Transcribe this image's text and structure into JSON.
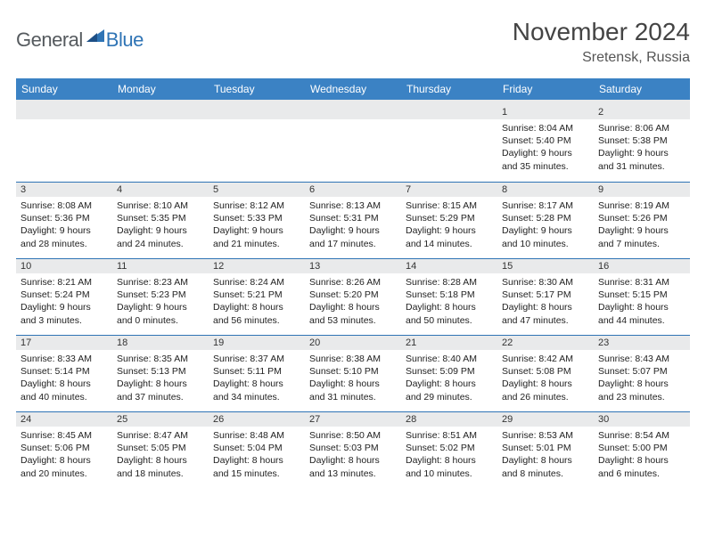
{
  "logo": {
    "prefix": "General",
    "suffix": "Blue"
  },
  "title": "November 2024",
  "location": "Sretensk, Russia",
  "colors": {
    "header_bg": "#3b82c4",
    "header_text": "#ffffff",
    "daynum_bg": "#e9eaeb",
    "row_divider": "#2f74b5",
    "body_text": "#222222",
    "page_bg": "#ffffff",
    "logo_gray": "#555a5e",
    "logo_blue": "#2f74b5"
  },
  "day_headers": [
    "Sunday",
    "Monday",
    "Tuesday",
    "Wednesday",
    "Thursday",
    "Friday",
    "Saturday"
  ],
  "weeks": [
    [
      {
        "n": "",
        "sr": "",
        "ss": "",
        "dl": ""
      },
      {
        "n": "",
        "sr": "",
        "ss": "",
        "dl": ""
      },
      {
        "n": "",
        "sr": "",
        "ss": "",
        "dl": ""
      },
      {
        "n": "",
        "sr": "",
        "ss": "",
        "dl": ""
      },
      {
        "n": "",
        "sr": "",
        "ss": "",
        "dl": ""
      },
      {
        "n": "1",
        "sr": "Sunrise: 8:04 AM",
        "ss": "Sunset: 5:40 PM",
        "dl": "Daylight: 9 hours and 35 minutes."
      },
      {
        "n": "2",
        "sr": "Sunrise: 8:06 AM",
        "ss": "Sunset: 5:38 PM",
        "dl": "Daylight: 9 hours and 31 minutes."
      }
    ],
    [
      {
        "n": "3",
        "sr": "Sunrise: 8:08 AM",
        "ss": "Sunset: 5:36 PM",
        "dl": "Daylight: 9 hours and 28 minutes."
      },
      {
        "n": "4",
        "sr": "Sunrise: 8:10 AM",
        "ss": "Sunset: 5:35 PM",
        "dl": "Daylight: 9 hours and 24 minutes."
      },
      {
        "n": "5",
        "sr": "Sunrise: 8:12 AM",
        "ss": "Sunset: 5:33 PM",
        "dl": "Daylight: 9 hours and 21 minutes."
      },
      {
        "n": "6",
        "sr": "Sunrise: 8:13 AM",
        "ss": "Sunset: 5:31 PM",
        "dl": "Daylight: 9 hours and 17 minutes."
      },
      {
        "n": "7",
        "sr": "Sunrise: 8:15 AM",
        "ss": "Sunset: 5:29 PM",
        "dl": "Daylight: 9 hours and 14 minutes."
      },
      {
        "n": "8",
        "sr": "Sunrise: 8:17 AM",
        "ss": "Sunset: 5:28 PM",
        "dl": "Daylight: 9 hours and 10 minutes."
      },
      {
        "n": "9",
        "sr": "Sunrise: 8:19 AM",
        "ss": "Sunset: 5:26 PM",
        "dl": "Daylight: 9 hours and 7 minutes."
      }
    ],
    [
      {
        "n": "10",
        "sr": "Sunrise: 8:21 AM",
        "ss": "Sunset: 5:24 PM",
        "dl": "Daylight: 9 hours and 3 minutes."
      },
      {
        "n": "11",
        "sr": "Sunrise: 8:23 AM",
        "ss": "Sunset: 5:23 PM",
        "dl": "Daylight: 9 hours and 0 minutes."
      },
      {
        "n": "12",
        "sr": "Sunrise: 8:24 AM",
        "ss": "Sunset: 5:21 PM",
        "dl": "Daylight: 8 hours and 56 minutes."
      },
      {
        "n": "13",
        "sr": "Sunrise: 8:26 AM",
        "ss": "Sunset: 5:20 PM",
        "dl": "Daylight: 8 hours and 53 minutes."
      },
      {
        "n": "14",
        "sr": "Sunrise: 8:28 AM",
        "ss": "Sunset: 5:18 PM",
        "dl": "Daylight: 8 hours and 50 minutes."
      },
      {
        "n": "15",
        "sr": "Sunrise: 8:30 AM",
        "ss": "Sunset: 5:17 PM",
        "dl": "Daylight: 8 hours and 47 minutes."
      },
      {
        "n": "16",
        "sr": "Sunrise: 8:31 AM",
        "ss": "Sunset: 5:15 PM",
        "dl": "Daylight: 8 hours and 44 minutes."
      }
    ],
    [
      {
        "n": "17",
        "sr": "Sunrise: 8:33 AM",
        "ss": "Sunset: 5:14 PM",
        "dl": "Daylight: 8 hours and 40 minutes."
      },
      {
        "n": "18",
        "sr": "Sunrise: 8:35 AM",
        "ss": "Sunset: 5:13 PM",
        "dl": "Daylight: 8 hours and 37 minutes."
      },
      {
        "n": "19",
        "sr": "Sunrise: 8:37 AM",
        "ss": "Sunset: 5:11 PM",
        "dl": "Daylight: 8 hours and 34 minutes."
      },
      {
        "n": "20",
        "sr": "Sunrise: 8:38 AM",
        "ss": "Sunset: 5:10 PM",
        "dl": "Daylight: 8 hours and 31 minutes."
      },
      {
        "n": "21",
        "sr": "Sunrise: 8:40 AM",
        "ss": "Sunset: 5:09 PM",
        "dl": "Daylight: 8 hours and 29 minutes."
      },
      {
        "n": "22",
        "sr": "Sunrise: 8:42 AM",
        "ss": "Sunset: 5:08 PM",
        "dl": "Daylight: 8 hours and 26 minutes."
      },
      {
        "n": "23",
        "sr": "Sunrise: 8:43 AM",
        "ss": "Sunset: 5:07 PM",
        "dl": "Daylight: 8 hours and 23 minutes."
      }
    ],
    [
      {
        "n": "24",
        "sr": "Sunrise: 8:45 AM",
        "ss": "Sunset: 5:06 PM",
        "dl": "Daylight: 8 hours and 20 minutes."
      },
      {
        "n": "25",
        "sr": "Sunrise: 8:47 AM",
        "ss": "Sunset: 5:05 PM",
        "dl": "Daylight: 8 hours and 18 minutes."
      },
      {
        "n": "26",
        "sr": "Sunrise: 8:48 AM",
        "ss": "Sunset: 5:04 PM",
        "dl": "Daylight: 8 hours and 15 minutes."
      },
      {
        "n": "27",
        "sr": "Sunrise: 8:50 AM",
        "ss": "Sunset: 5:03 PM",
        "dl": "Daylight: 8 hours and 13 minutes."
      },
      {
        "n": "28",
        "sr": "Sunrise: 8:51 AM",
        "ss": "Sunset: 5:02 PM",
        "dl": "Daylight: 8 hours and 10 minutes."
      },
      {
        "n": "29",
        "sr": "Sunrise: 8:53 AM",
        "ss": "Sunset: 5:01 PM",
        "dl": "Daylight: 8 hours and 8 minutes."
      },
      {
        "n": "30",
        "sr": "Sunrise: 8:54 AM",
        "ss": "Sunset: 5:00 PM",
        "dl": "Daylight: 8 hours and 6 minutes."
      }
    ]
  ]
}
